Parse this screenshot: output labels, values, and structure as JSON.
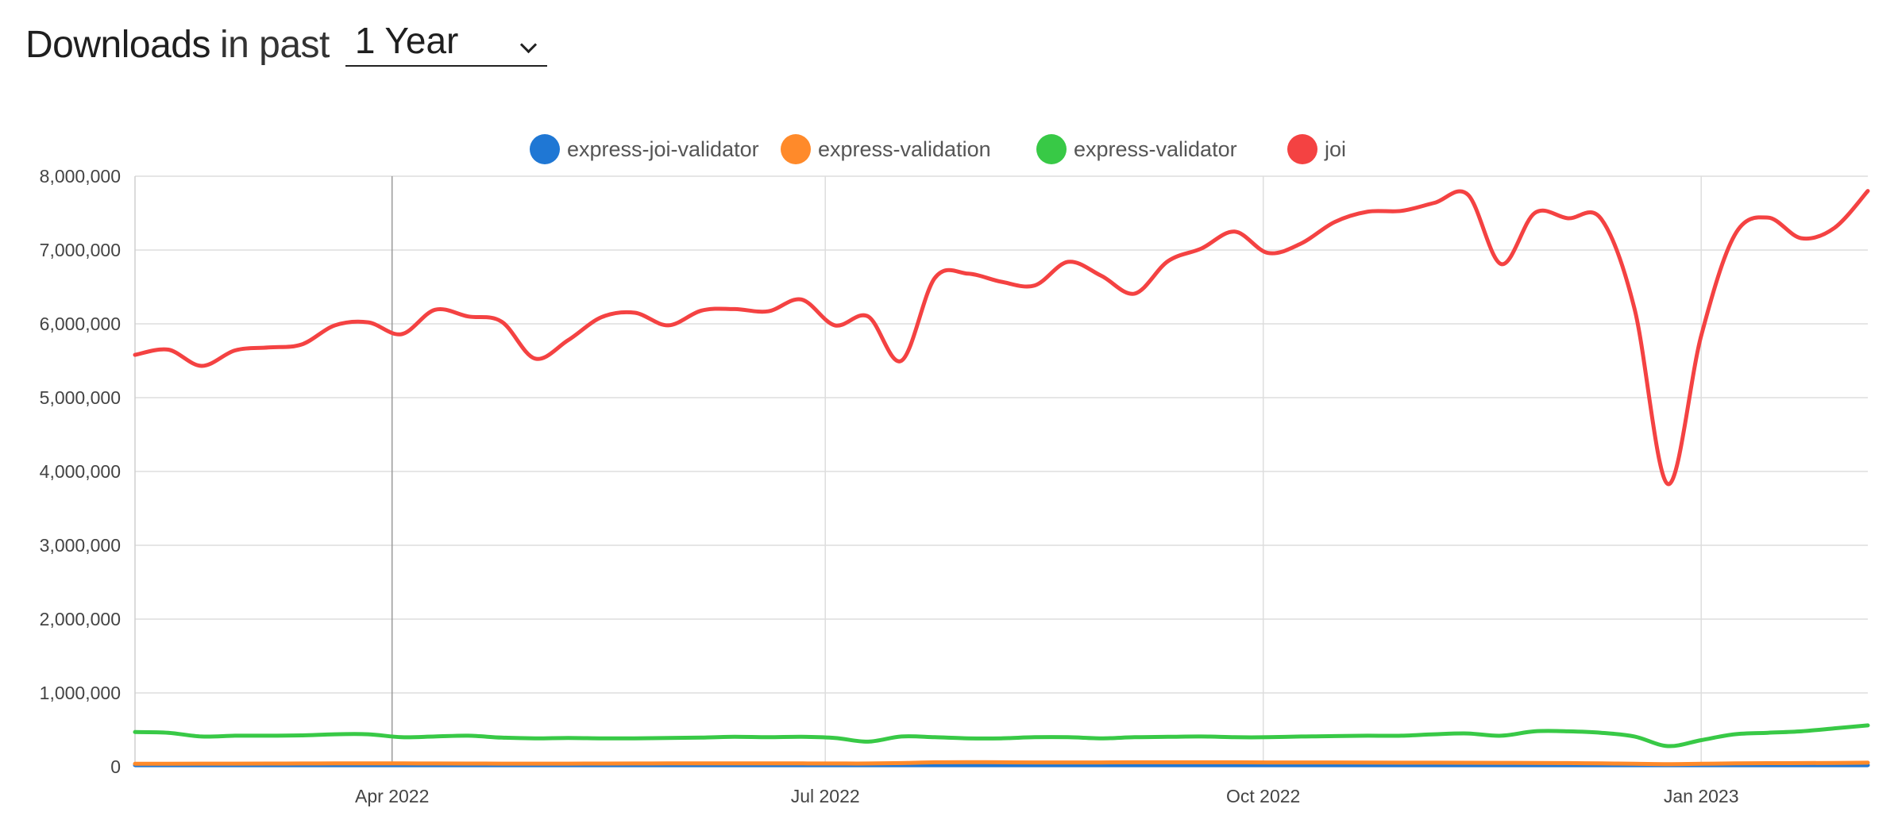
{
  "header": {
    "title_strong": "Downloads",
    "title_light": "in past",
    "range_selected": "1 Year"
  },
  "chart_data": {
    "type": "line",
    "grid": true,
    "legend_position": "top-center",
    "ylim": [
      0,
      8000000
    ],
    "y_ticks": [
      {
        "value": 0,
        "label": "0"
      },
      {
        "value": 1000000,
        "label": "1,000,000"
      },
      {
        "value": 2000000,
        "label": "2,000,000"
      },
      {
        "value": 3000000,
        "label": "3,000,000"
      },
      {
        "value": 4000000,
        "label": "4,000,000"
      },
      {
        "value": 5000000,
        "label": "5,000,000"
      },
      {
        "value": 6000000,
        "label": "6,000,000"
      },
      {
        "value": 7000000,
        "label": "7,000,000"
      },
      {
        "value": 8000000,
        "label": "8,000,000"
      }
    ],
    "xlim": [
      "2022-02-06",
      "2023-02-05"
    ],
    "x_ticks": [
      {
        "date": "2022-04-01",
        "label": "Apr 2022"
      },
      {
        "date": "2022-07-01",
        "label": "Jul 2022"
      },
      {
        "date": "2022-10-01",
        "label": "Oct 2022"
      },
      {
        "date": "2023-01-01",
        "label": "Jan 2023"
      }
    ],
    "x": [
      "2022-02-06",
      "2022-02-13",
      "2022-02-20",
      "2022-02-27",
      "2022-03-06",
      "2022-03-13",
      "2022-03-20",
      "2022-03-27",
      "2022-04-03",
      "2022-04-10",
      "2022-04-17",
      "2022-04-24",
      "2022-05-01",
      "2022-05-08",
      "2022-05-15",
      "2022-05-22",
      "2022-05-29",
      "2022-06-05",
      "2022-06-12",
      "2022-06-19",
      "2022-06-26",
      "2022-07-03",
      "2022-07-10",
      "2022-07-17",
      "2022-07-24",
      "2022-07-31",
      "2022-08-07",
      "2022-08-14",
      "2022-08-21",
      "2022-08-28",
      "2022-09-04",
      "2022-09-11",
      "2022-09-18",
      "2022-09-25",
      "2022-10-02",
      "2022-10-09",
      "2022-10-16",
      "2022-10-23",
      "2022-10-30",
      "2022-11-06",
      "2022-11-13",
      "2022-11-20",
      "2022-11-27",
      "2022-12-04",
      "2022-12-11",
      "2022-12-18",
      "2022-12-25",
      "2023-01-01",
      "2023-01-08",
      "2023-01-15",
      "2023-01-22",
      "2023-01-29",
      "2023-02-05"
    ],
    "series": [
      {
        "name": "express-joi-validator",
        "color": "#1f77d4",
        "values": [
          5000,
          5000,
          5000,
          5000,
          5000,
          5000,
          5000,
          5000,
          5000,
          5000,
          5000,
          5000,
          5000,
          5000,
          5000,
          5000,
          5000,
          5000,
          5000,
          5000,
          5000,
          5000,
          5000,
          5000,
          5000,
          5000,
          5000,
          5000,
          5000,
          5000,
          5000,
          5000,
          5000,
          5000,
          5000,
          5000,
          5000,
          5000,
          5000,
          5000,
          5000,
          5000,
          5000,
          5000,
          5000,
          5000,
          5000,
          5000,
          5000,
          5000,
          5000,
          5000,
          5000
        ]
      },
      {
        "name": "express-validation",
        "color": "#ff8a2a",
        "values": [
          40000,
          40000,
          42000,
          42000,
          43000,
          44000,
          45000,
          45000,
          45000,
          44000,
          43000,
          42000,
          42000,
          42000,
          43000,
          44000,
          45000,
          45000,
          45000,
          45000,
          45000,
          44000,
          44000,
          50000,
          60000,
          62000,
          60000,
          58000,
          58000,
          58000,
          60000,
          60000,
          60000,
          60000,
          58000,
          58000,
          58000,
          56000,
          55000,
          55000,
          54000,
          53000,
          52000,
          50000,
          45000,
          40000,
          35000,
          40000,
          45000,
          48000,
          50000,
          52000,
          55000
        ]
      },
      {
        "name": "express-validator",
        "color": "#38c946",
        "values": [
          470000,
          460000,
          410000,
          420000,
          420000,
          425000,
          440000,
          440000,
          400000,
          410000,
          420000,
          395000,
          385000,
          390000,
          385000,
          385000,
          390000,
          395000,
          405000,
          400000,
          405000,
          390000,
          340000,
          410000,
          400000,
          385000,
          385000,
          400000,
          400000,
          385000,
          400000,
          405000,
          410000,
          400000,
          400000,
          410000,
          415000,
          420000,
          420000,
          440000,
          450000,
          420000,
          480000,
          480000,
          460000,
          410000,
          280000,
          360000,
          440000,
          460000,
          480000,
          520000,
          560000
        ]
      },
      {
        "name": "joi",
        "color": "#f44242",
        "values": [
          5580000,
          5650000,
          5430000,
          5640000,
          5680000,
          5720000,
          5980000,
          6020000,
          5860000,
          6190000,
          6100000,
          6030000,
          5530000,
          5780000,
          6090000,
          6150000,
          5980000,
          6180000,
          6200000,
          6170000,
          6330000,
          5980000,
          6100000,
          5500000,
          6620000,
          6680000,
          6570000,
          6520000,
          6840000,
          6650000,
          6410000,
          6850000,
          7020000,
          7250000,
          6960000,
          7090000,
          7380000,
          7520000,
          7530000,
          7640000,
          7750000,
          6810000,
          7500000,
          7430000,
          7420000,
          6200000,
          3830000,
          5840000,
          7200000,
          7440000,
          7160000,
          7300000,
          7800000
        ]
      }
    ]
  }
}
